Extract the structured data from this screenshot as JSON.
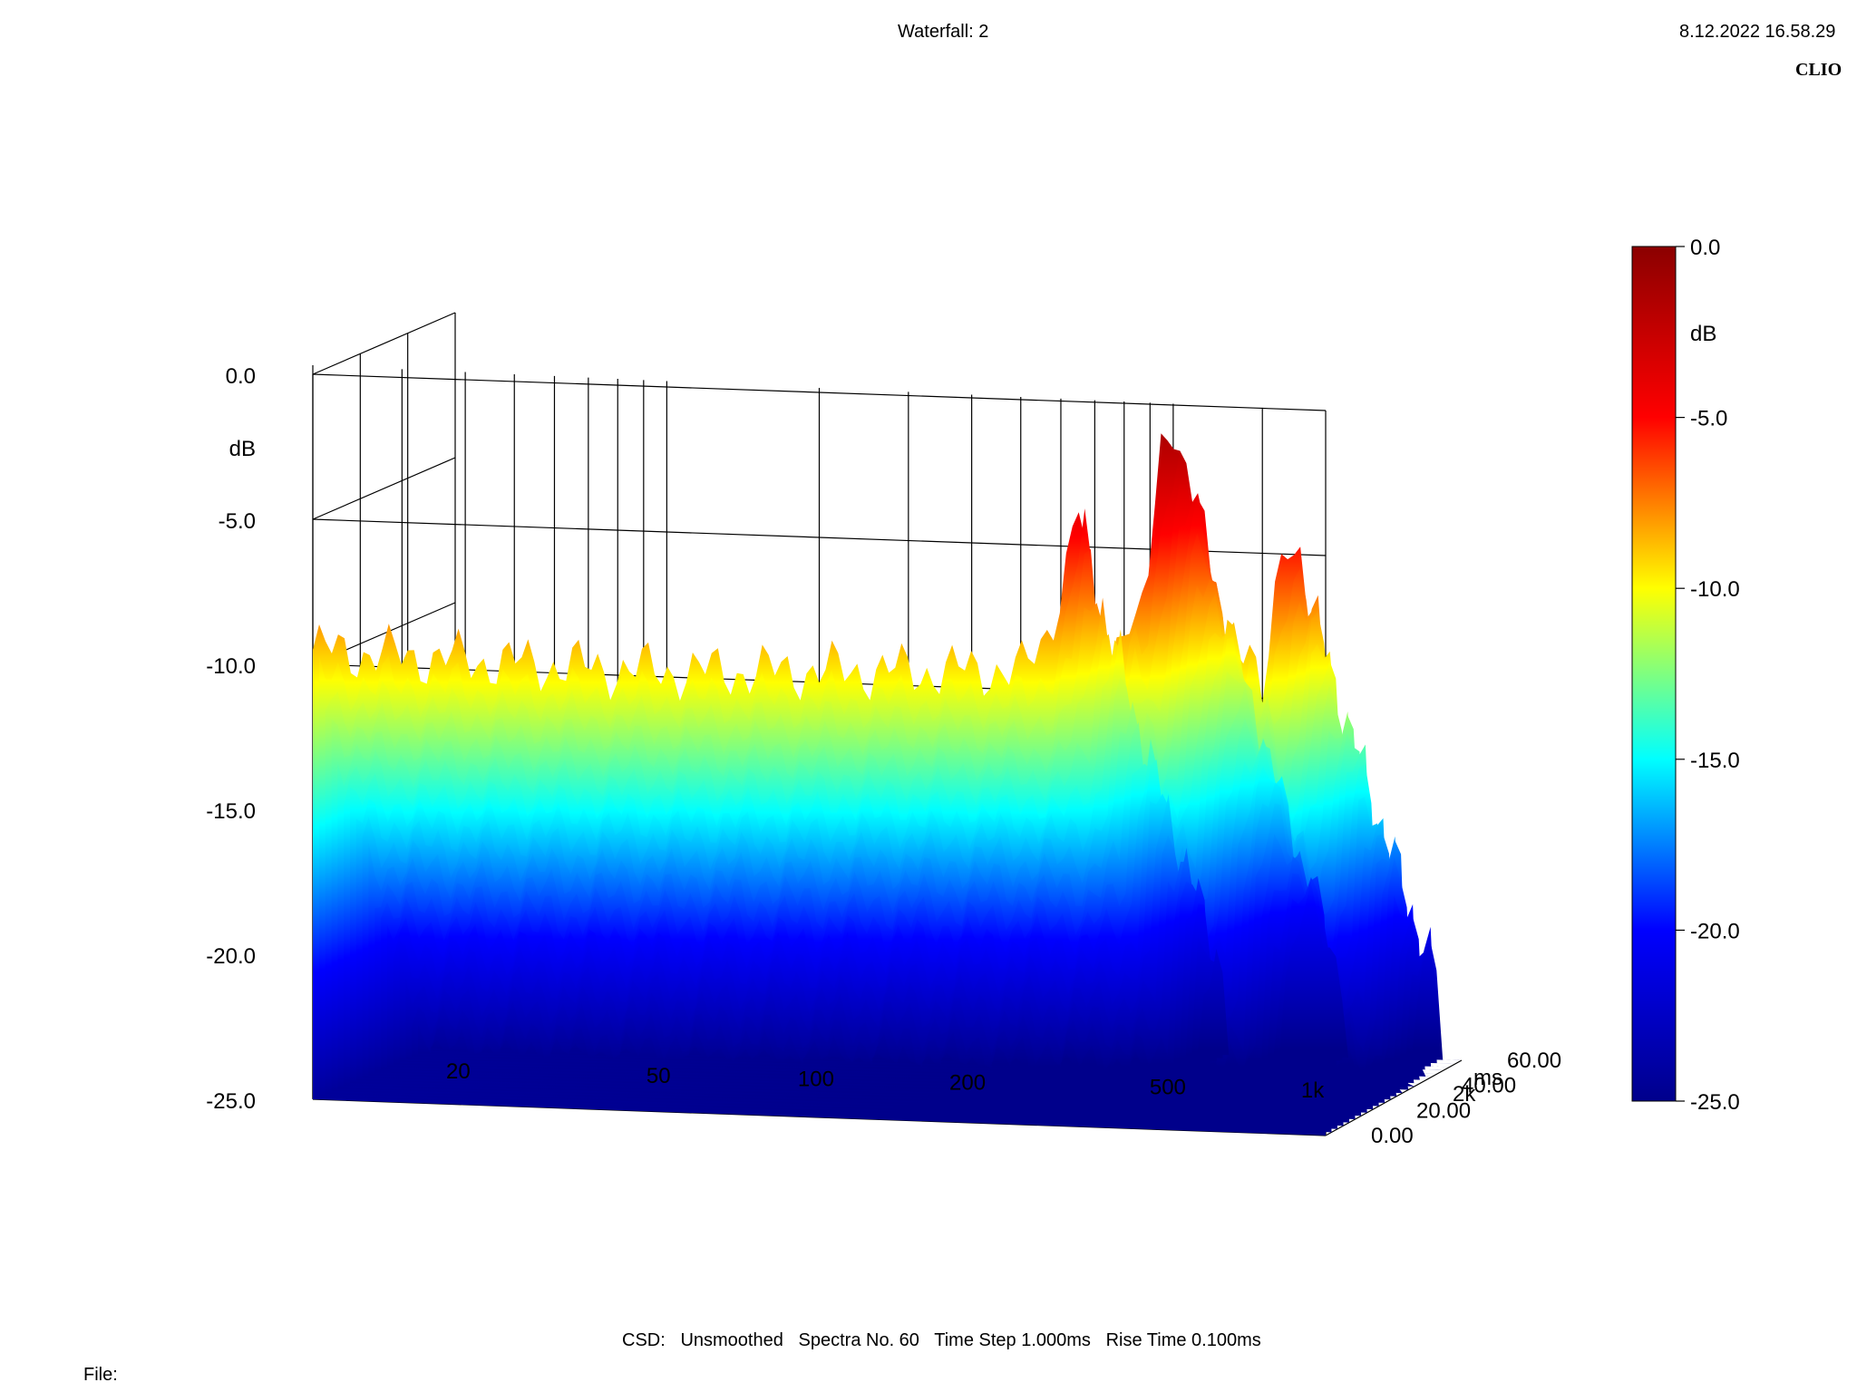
{
  "header": {
    "title": "Waterfall: 2",
    "timestamp": "8.12.2022 16.58.29",
    "brand": "CLIO"
  },
  "footer": {
    "info": "CSD:   Unsmoothed   Spectra No. 60   Time Step 1.000ms   Rise Time 0.100ms",
    "file_label": "File:"
  },
  "chart_data": {
    "type": "waterfall",
    "title": "Waterfall: 2",
    "x_ticks": [
      "20",
      "50",
      "100",
      "200",
      "500",
      "1k",
      "2k"
    ],
    "x_tick_values": [
      20,
      50,
      100,
      200,
      500,
      1000,
      2000
    ],
    "z_ticks": [
      "0.0",
      "-5.0",
      "-10.0",
      "-15.0",
      "-20.0",
      "-25.0"
    ],
    "z_unit": "dB",
    "zlim": [
      -25,
      0
    ],
    "t_ticks": [
      "0.00",
      "20.00",
      "40.00",
      "60.00"
    ],
    "t_unit": "ms",
    "tlim": [
      0,
      60
    ],
    "colorbar_ticks": [
      "0.0",
      "-5.0",
      "-10.0",
      "-15.0",
      "-20.0",
      "-25.0"
    ],
    "colorbar_unit": "dB",
    "colormap": [
      "#00008b",
      "#0000ff",
      "#00ffff",
      "#ffff00",
      "#ff0000",
      "#8b0000"
    ],
    "first_spectrum": {
      "freq": [
        20,
        30,
        50,
        80,
        100,
        150,
        200,
        300,
        400,
        450,
        500,
        550,
        600,
        650,
        700,
        750,
        800,
        850,
        900,
        950,
        1000,
        1100,
        1200,
        1300,
        1400,
        1500,
        1600,
        1700,
        1800,
        1900,
        2000
      ],
      "db": [
        -9.5,
        -9.6,
        -9.7,
        -9.8,
        -9.8,
        -9.7,
        -9.6,
        -9.5,
        -9.4,
        -9.3,
        -9.4,
        -8.5,
        -6.5,
        -3.5,
        -7.8,
        -9.0,
        -7.0,
        -8.0,
        -5.5,
        -1.5,
        -0.5,
        -3.0,
        -7.5,
        -8.5,
        -7.5,
        -10.0,
        -6.5,
        -4.5,
        -5.0,
        -9.0,
        -25.0
      ]
    },
    "grid": true
  }
}
